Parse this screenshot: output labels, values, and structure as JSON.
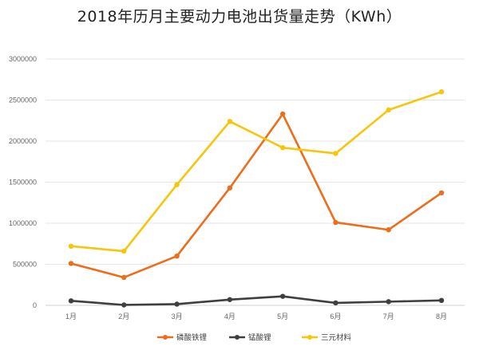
{
  "chart_data": {
    "type": "line",
    "title": "2018年历月主要动力电池出货量走势（KWh）",
    "xlabel": "",
    "ylabel": "",
    "categories": [
      "1月",
      "2月",
      "3月",
      "4月",
      "5月",
      "6月",
      "7月",
      "8月"
    ],
    "ylim": [
      0,
      3000000
    ],
    "yticks": [
      "0",
      "500000",
      "1000000",
      "1500000",
      "2000000",
      "2500000",
      "3000000"
    ],
    "grid": true,
    "legend": "bottom",
    "series": [
      {
        "name": "磷酸铁锂",
        "color": "#ED6D1B",
        "values": [
          510000,
          340000,
          600000,
          1430000,
          2330000,
          1010000,
          920000,
          1370000
        ]
      },
      {
        "name": "锰酸锂",
        "color": "#3F3F3F",
        "values": [
          55000,
          5000,
          15000,
          70000,
          110000,
          30000,
          45000,
          60000
        ]
      },
      {
        "name": "三元材料",
        "color": "#F5C60A",
        "values": [
          720000,
          660000,
          1470000,
          2240000,
          1920000,
          1850000,
          2380000,
          2600000
        ]
      }
    ]
  }
}
